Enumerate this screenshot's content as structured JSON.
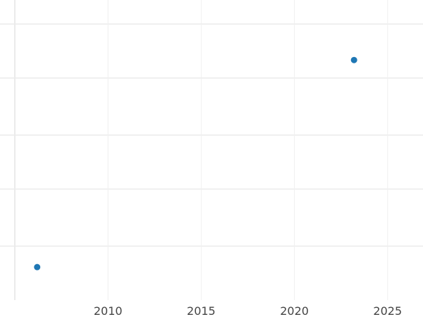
{
  "chart_data": {
    "type": "scatter",
    "title": "",
    "xlabel": "",
    "ylabel": "",
    "xlim": [
      2005.0,
      2026.9
    ],
    "ylim": [
      0,
      1
    ],
    "x_ticks": [
      "2010",
      "2015",
      "2020",
      "2025"
    ],
    "x_tick_values": [
      2010,
      2015,
      2020,
      2025
    ],
    "y_gridlines": [
      0.18,
      0.37,
      0.55,
      0.74,
      0.92
    ],
    "grid": true,
    "series": [
      {
        "x": [
          2006.2,
          2023.2
        ],
        "y": [
          0.11,
          0.8
        ],
        "color": "#1f77b4"
      }
    ]
  }
}
